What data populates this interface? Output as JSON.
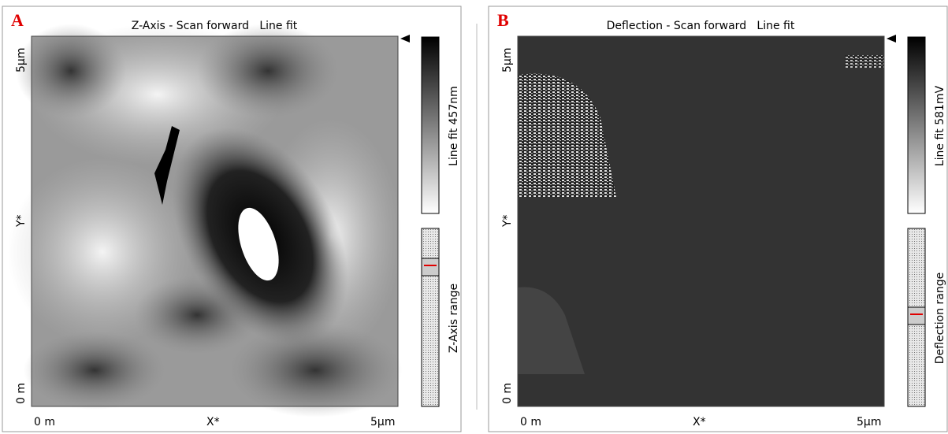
{
  "panels": [
    {
      "letter": "A",
      "title": "Z-Axis - Scan forward   Line fit",
      "y_axis": {
        "top": "5µm",
        "label": "Y*",
        "bottom": "0 m"
      },
      "x_axis": {
        "left": "0 m",
        "label": "X*",
        "right": "5µm"
      },
      "colorbar_label": "Line fit 457nm",
      "range_label": "Z-Axis range"
    },
    {
      "letter": "B",
      "title": "Deflection - Scan forward   Line fit",
      "y_axis": {
        "top": "5µm",
        "label": "Y*",
        "bottom": "0 m"
      },
      "x_axis": {
        "left": "0 m",
        "label": "X*",
        "right": "5µm"
      },
      "colorbar_label": "Line fit 581mV",
      "range_label": "Deflection range"
    }
  ]
}
